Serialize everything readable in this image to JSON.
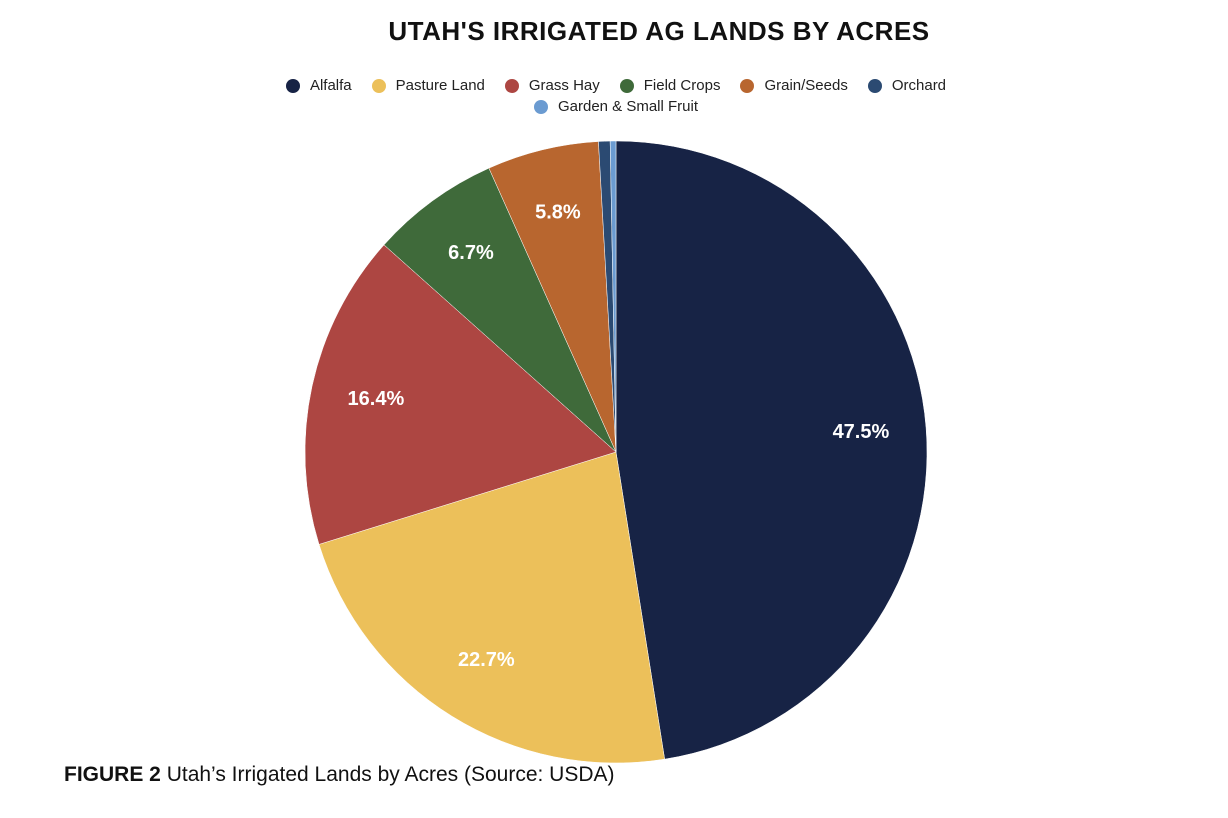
{
  "chart_data": {
    "type": "pie",
    "title": "UTAH'S IRRIGATED AG LANDS BY ACRES",
    "categories": [
      "Alfalfa",
      "Pasture Land",
      "Grass Hay",
      "Field Crops",
      "Grain/Seeds",
      "Orchard",
      "Garden & Small Fruit"
    ],
    "values": [
      47.5,
      22.7,
      16.4,
      6.7,
      5.8,
      0.6,
      0.3
    ],
    "value_labels": [
      "47.5%",
      "22.7%",
      "16.4%",
      "6.7%",
      "5.8%",
      null,
      null
    ],
    "colors": [
      "#172345",
      "#ecc05a",
      "#ad4642",
      "#3f6a3a",
      "#b8662f",
      "#2b4a72",
      "#6b9bd1"
    ],
    "legend": "top"
  },
  "caption": {
    "label": "FIGURE 2",
    "text": "Utah’s Irrigated Lands by Acres (Source: USDA)"
  }
}
